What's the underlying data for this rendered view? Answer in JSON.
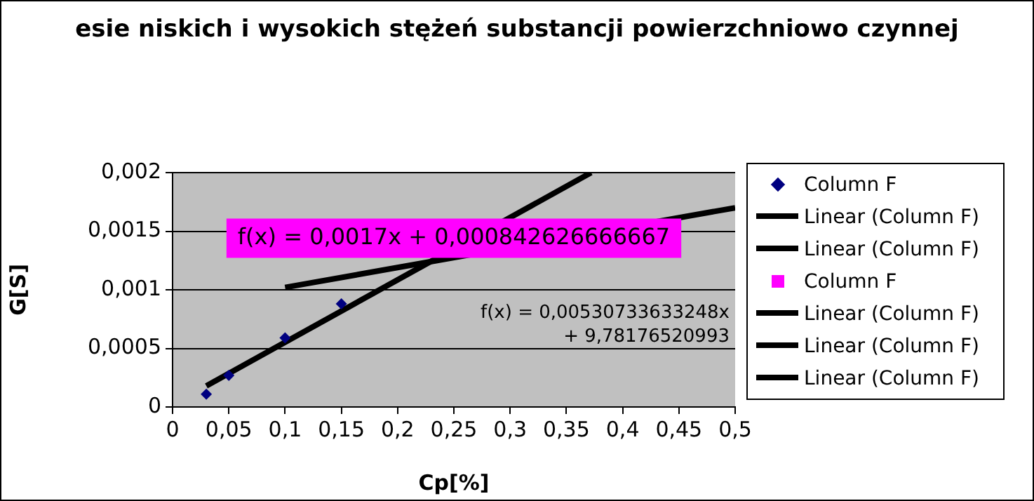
{
  "chart_data": {
    "type": "scatter",
    "title": "esie niskich i wysokich stężeń substancji powierzchniowo czynnej",
    "xlabel": "Cp[%]",
    "ylabel": "G[S]",
    "xlim": [
      0,
      0.5
    ],
    "xticks": [
      0,
      {
        "value": 0.05,
        "label": "0,05"
      },
      {
        "value": 0.1,
        "label": "0,1"
      },
      {
        "value": 0.15,
        "label": "0,15"
      },
      {
        "value": 0.2,
        "label": "0,2"
      },
      {
        "value": 0.25,
        "label": "0,25"
      },
      {
        "value": 0.3,
        "label": "0,3"
      },
      {
        "value": 0.35,
        "label": "0,35"
      },
      {
        "value": 0.4,
        "label": "0,4"
      },
      {
        "value": 0.45,
        "label": "0,45"
      },
      {
        "value": 0.5,
        "label": "0,5"
      }
    ],
    "ylim": [
      0,
      0.002
    ],
    "yticks": [
      0,
      {
        "value": 0.0005,
        "label": "0,0005"
      },
      {
        "value": 0.001,
        "label": "0,001"
      },
      {
        "value": 0.0015,
        "label": "0,0015"
      },
      {
        "value": 0.002,
        "label": "0,002"
      }
    ],
    "grid": "y",
    "legend": "right",
    "line_style": "solid",
    "series": [
      {
        "name": "Column F",
        "type": "scatter",
        "marker": "diamond",
        "color": "#000080",
        "x": [
          0.03,
          0.05,
          0.1,
          0.15
        ],
        "values": [
          0.00011,
          0.00027,
          0.00059,
          0.00088
        ]
      },
      {
        "name": "Linear (Column F)",
        "type": "line",
        "color": "#000000",
        "x": [
          0.03,
          0.372
        ],
        "values": [
          0.00018,
          0.002
        ]
      },
      {
        "name": "Linear (Column F)",
        "type": "line",
        "color": "#000000",
        "x": [
          0.1,
          0.5
        ],
        "values": [
          0.00102,
          0.0017
        ]
      },
      {
        "name": "Column F",
        "type": "scatter",
        "marker": "square",
        "color": "#ff00ff"
      },
      {
        "name": "Linear (Column F)",
        "type": "line",
        "color": "#000000"
      },
      {
        "name": "Linear (Column F)",
        "type": "line",
        "color": "#000000"
      },
      {
        "name": "Linear (Column F)",
        "type": "line",
        "color": "#000000"
      }
    ],
    "annotations": [
      "f(x) = 0,0017x + 0,000842626666667",
      "f(x) = 0,00530733633248x + 9,78176520993"
    ]
  }
}
